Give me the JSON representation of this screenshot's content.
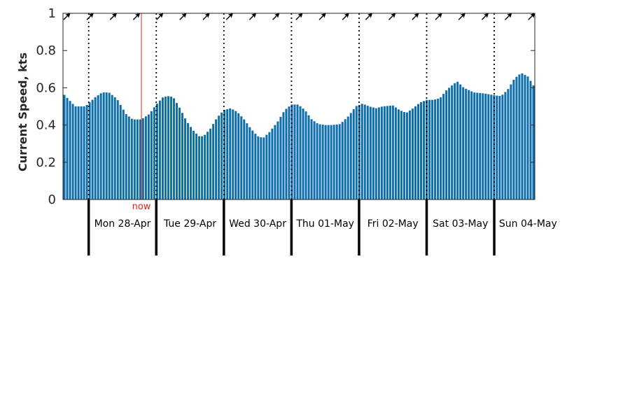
{
  "chart_data": {
    "type": "bar",
    "ylabel": "Current Speed, kts",
    "ylim": [
      0,
      1
    ],
    "yticks": [
      0,
      0.2,
      0.4,
      0.6,
      0.8,
      1
    ],
    "ytick_labels": [
      "0",
      "0.2",
      "0.4",
      "0.6",
      "0.8",
      "1"
    ],
    "x_range_days": [
      -0.38,
      6.6
    ],
    "day_labels": [
      "Mon 28-Apr",
      "Tue 29-Apr",
      "Wed 30-Apr",
      "Thu 01-May",
      "Fri 02-May",
      "Sat 03-May",
      "Sun 04-May"
    ],
    "now_label": "now",
    "now_day": 0.78,
    "bar_color": "#0d6eab",
    "now_color": "#e8231b",
    "direction_arrows": "north-east",
    "key_points": [
      [
        -0.38,
        0.57
      ],
      [
        -0.2,
        0.5
      ],
      [
        -0.05,
        0.5
      ],
      [
        0.1,
        0.55
      ],
      [
        0.2,
        0.575
      ],
      [
        0.3,
        0.575
      ],
      [
        0.42,
        0.54
      ],
      [
        0.55,
        0.46
      ],
      [
        0.65,
        0.43
      ],
      [
        0.78,
        0.43
      ],
      [
        0.9,
        0.46
      ],
      [
        1.0,
        0.51
      ],
      [
        1.1,
        0.55
      ],
      [
        1.18,
        0.555
      ],
      [
        1.25,
        0.55
      ],
      [
        1.35,
        0.49
      ],
      [
        1.45,
        0.42
      ],
      [
        1.55,
        0.37
      ],
      [
        1.63,
        0.34
      ],
      [
        1.7,
        0.34
      ],
      [
        1.8,
        0.38
      ],
      [
        1.9,
        0.44
      ],
      [
        2.0,
        0.48
      ],
      [
        2.1,
        0.49
      ],
      [
        2.2,
        0.47
      ],
      [
        2.3,
        0.43
      ],
      [
        2.4,
        0.38
      ],
      [
        2.5,
        0.34
      ],
      [
        2.58,
        0.33
      ],
      [
        2.67,
        0.36
      ],
      [
        2.8,
        0.42
      ],
      [
        2.9,
        0.48
      ],
      [
        3.0,
        0.51
      ],
      [
        3.1,
        0.51
      ],
      [
        3.2,
        0.48
      ],
      [
        3.3,
        0.43
      ],
      [
        3.4,
        0.405
      ],
      [
        3.5,
        0.4
      ],
      [
        3.6,
        0.4
      ],
      [
        3.72,
        0.405
      ],
      [
        3.85,
        0.45
      ],
      [
        3.95,
        0.5
      ],
      [
        4.05,
        0.515
      ],
      [
        4.15,
        0.5
      ],
      [
        4.25,
        0.49
      ],
      [
        4.35,
        0.5
      ],
      [
        4.5,
        0.505
      ],
      [
        4.6,
        0.48
      ],
      [
        4.7,
        0.465
      ],
      [
        4.8,
        0.49
      ],
      [
        4.9,
        0.52
      ],
      [
        5.0,
        0.535
      ],
      [
        5.1,
        0.535
      ],
      [
        5.2,
        0.545
      ],
      [
        5.3,
        0.59
      ],
      [
        5.45,
        0.635
      ],
      [
        5.55,
        0.6
      ],
      [
        5.7,
        0.575
      ],
      [
        5.85,
        0.57
      ],
      [
        6.0,
        0.56
      ],
      [
        6.1,
        0.555
      ],
      [
        6.2,
        0.59
      ],
      [
        6.3,
        0.65
      ],
      [
        6.4,
        0.68
      ],
      [
        6.5,
        0.66
      ],
      [
        6.6,
        0.6
      ]
    ]
  }
}
